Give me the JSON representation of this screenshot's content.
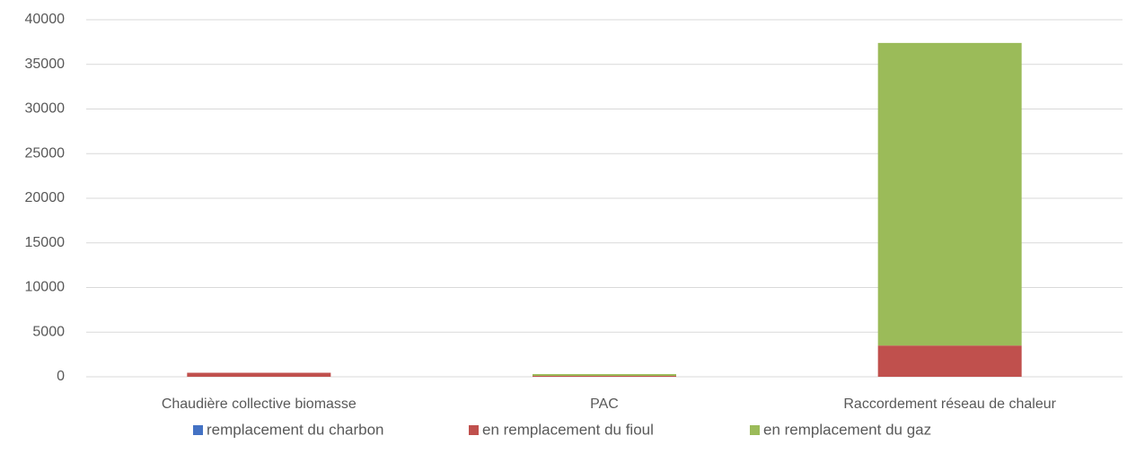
{
  "chart_data": {
    "type": "stacked_bar",
    "categories": [
      "Chaudière collective biomasse",
      "PAC",
      "Raccordement réseau de chaleur"
    ],
    "series": [
      {
        "name": "remplacement du charbon",
        "color": "#4472c4",
        "values": [
          0,
          0,
          0
        ]
      },
      {
        "name": "en remplacement du fioul",
        "color": "#c0504d",
        "values": [
          450,
          100,
          3500
        ]
      },
      {
        "name": "en remplacement du gaz",
        "color": "#9bbb59",
        "values": [
          0,
          200,
          33900
        ]
      }
    ],
    "ylim": [
      0,
      40000
    ],
    "yticks": [
      0,
      5000,
      10000,
      15000,
      20000,
      25000,
      30000,
      35000,
      40000
    ],
    "grid": true,
    "legend": "bottom"
  }
}
